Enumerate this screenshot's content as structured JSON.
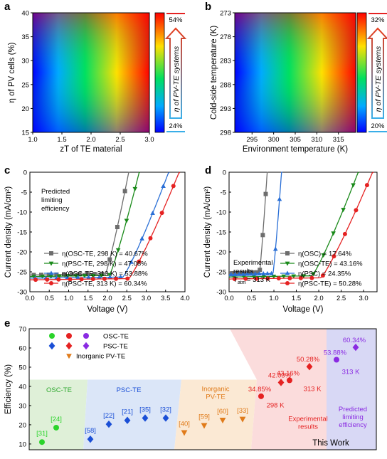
{
  "chart_data": [
    {
      "panel": "a",
      "type": "heatmap",
      "xlabel": "zT of TE material",
      "ylabel": "η of PV cells (%)",
      "xlim": [
        1.0,
        3.0
      ],
      "ylim": [
        15,
        40
      ],
      "xticks": [
        "1.0",
        "1.5",
        "2.0",
        "2.5",
        "3.0"
      ],
      "yticks": [
        "15",
        "20",
        "25",
        "30",
        "35",
        "40"
      ],
      "colorbar_label": "η of PV-TE systems",
      "colorbar_max": "54%",
      "colorbar_min": "24%",
      "corner_values": {
        "low_low": 24,
        "high_high": 54
      }
    },
    {
      "panel": "b",
      "type": "heatmap",
      "xlabel": "Environment temperature (K)",
      "ylabel": "Cold-side temperature (K)",
      "xlim": [
        291,
        319
      ],
      "ylim": [
        298,
        273
      ],
      "xticks": [
        "295",
        "300",
        "305",
        "310",
        "315"
      ],
      "yticks": [
        "273",
        "278",
        "283",
        "288",
        "293",
        "298"
      ],
      "colorbar_label": "η of PV-TE systems",
      "colorbar_max": "32%",
      "colorbar_min": "20%",
      "corner_values": {
        "low_low": 20,
        "high_high": 32
      }
    },
    {
      "panel": "c",
      "type": "line",
      "xlabel": "Voltage (V)",
      "ylabel": "Current density (mA/cm²)",
      "xlim": [
        0,
        4.0
      ],
      "ylim": [
        -30,
        0
      ],
      "xticks": [
        "0.0",
        "0.5",
        "1.0",
        "1.5",
        "2.0",
        "2.5",
        "3.0",
        "3.5",
        "4.0"
      ],
      "yticks": [
        "0",
        "-5",
        "-10",
        "-15",
        "-20",
        "-25",
        "-30"
      ],
      "annotation": [
        "Predicted",
        "limiting",
        "efficiency"
      ],
      "series": [
        {
          "name": "η(OSC-TE, 298 K) = 40.67%",
          "color": "#6d6d6d",
          "marker": "square",
          "jsc": -25.8,
          "voc": 2.55,
          "knee": 1.95,
          "curv": 0.12
        },
        {
          "name": "η(PSC-TE, 298 K) = 47.06%",
          "color": "#1a8a1a",
          "marker": "tri-down",
          "jsc": -26.2,
          "voc": 2.82,
          "knee": 2.05,
          "curv": 0.12
        },
        {
          "name": "η(OSC-TE, 313 K) = 53.88%",
          "color": "#2a6fd6",
          "marker": "tri-up",
          "jsc": -26.6,
          "voc": 3.58,
          "knee": 2.4,
          "curv": 0.14
        },
        {
          "name": "η(PSC-TE, 313 K) = 60.34%",
          "color": "#e52222",
          "marker": "circle",
          "jsc": -27.0,
          "voc": 3.85,
          "knee": 2.55,
          "curv": 0.14
        }
      ]
    },
    {
      "panel": "d",
      "type": "line",
      "xlabel": "Voltage (V)",
      "ylabel": "Current density (mA/cm²)",
      "xlim": [
        0,
        3.3
      ],
      "ylim": [
        -30,
        0
      ],
      "xticks": [
        "0.0",
        "0.5",
        "1.0",
        "1.5",
        "2.0",
        "2.5",
        "3.0"
      ],
      "yticks": [
        "0",
        "-5",
        "-10",
        "-15",
        "-20",
        "-25",
        "-30"
      ],
      "annotation": [
        "Experimental",
        "results"
      ],
      "annotation_temp": "T",
      "annotation_temp_sub": "atm",
      "annotation_temp_value": " = 313 K",
      "series": [
        {
          "name": "η(OSC) = 17.64%",
          "color": "#6d6d6d",
          "marker": "square",
          "jsc": -25.4,
          "voc": 0.85,
          "knee": 0.68,
          "curv": 0.035
        },
        {
          "name": "η(OSC-TE) = 43.16%",
          "color": "#1a8a1a",
          "marker": "tri-down",
          "jsc": -26.3,
          "voc": 2.88,
          "knee": 1.85,
          "curv": 0.16
        },
        {
          "name": "η(PSC) = 24.35%",
          "color": "#2a6fd6",
          "marker": "tri-up",
          "jsc": -25.7,
          "voc": 1.17,
          "knee": 0.98,
          "curv": 0.035
        },
        {
          "name": "η(PSC-TE) = 50.28%",
          "color": "#e52222",
          "marker": "circle",
          "jsc": -26.8,
          "voc": 3.2,
          "knee": 2.05,
          "curv": 0.17
        }
      ]
    },
    {
      "panel": "e",
      "type": "scatter",
      "ylabel": "Efficiency (%)",
      "ylim": [
        7,
        70
      ],
      "yticks": [
        "10",
        "20",
        "30",
        "40",
        "50",
        "60",
        "70"
      ],
      "legend": [
        {
          "label": "OSC-TE",
          "markers": [
            {
              "shape": "circle",
              "color": "#2bd42b"
            },
            {
              "shape": "circle",
              "color": "#e52222"
            },
            {
              "shape": "circle",
              "color": "#8a2be2"
            }
          ]
        },
        {
          "label": "PSC-TE",
          "markers": [
            {
              "shape": "diamond",
              "color": "#1a4fd6"
            },
            {
              "shape": "diamond",
              "color": "#e52222"
            },
            {
              "shape": "diamond",
              "color": "#8a2be2"
            }
          ]
        },
        {
          "label": "Inorganic PV-TE",
          "markers": [
            {
              "shape": "tri-down",
              "color": "#e07b1a"
            }
          ]
        }
      ],
      "regions": [
        {
          "label": "OSC-TE",
          "color": "#2fa82f"
        },
        {
          "label": "PSC-TE",
          "color": "#1a4fd6"
        },
        {
          "label": "Inorganic",
          "label2": "PV-TE",
          "color": "#e07b1a"
        },
        {
          "label": "Experimental",
          "label2": "results",
          "color": "#e52222"
        },
        {
          "label": "Predicted",
          "label2": "limiting",
          "label3": "efficiency",
          "color": "#8a2be2"
        }
      ],
      "points": [
        {
          "label": "[31]",
          "value": 11.0,
          "shape": "circle",
          "color": "#2bd42b"
        },
        {
          "label": "[24]",
          "value": 18.5,
          "shape": "circle",
          "color": "#2bd42b"
        },
        {
          "label": "[58]",
          "value": 12.5,
          "shape": "diamond",
          "color": "#1a4fd6"
        },
        {
          "label": "[22]",
          "value": 20.3,
          "shape": "diamond",
          "color": "#1a4fd6"
        },
        {
          "label": "[21]",
          "value": 22.3,
          "shape": "diamond",
          "color": "#1a4fd6"
        },
        {
          "label": "[35]",
          "value": 23.5,
          "shape": "diamond",
          "color": "#1a4fd6"
        },
        {
          "label": "[32]",
          "value": 23.5,
          "shape": "diamond",
          "color": "#1a4fd6"
        },
        {
          "label": "[40]",
          "value": 16.0,
          "shape": "tri-down",
          "color": "#e07b1a"
        },
        {
          "label": "[59]",
          "value": 19.7,
          "shape": "tri-down",
          "color": "#e07b1a"
        },
        {
          "label": "[60]",
          "value": 22.5,
          "shape": "tri-down",
          "color": "#e07b1a"
        },
        {
          "label": "[33]",
          "value": 23.0,
          "shape": "tri-down",
          "color": "#e07b1a"
        },
        {
          "label": "34.85%",
          "value": 34.85,
          "shape": "circle",
          "color": "#e52222"
        },
        {
          "label": "42.03%",
          "value": 42.03,
          "shape": "diamond",
          "color": "#e52222"
        },
        {
          "label": "43.16%",
          "value": 43.16,
          "shape": "circle",
          "color": "#e52222"
        },
        {
          "label": "50.28%",
          "value": 50.28,
          "shape": "diamond",
          "color": "#e52222"
        },
        {
          "label": "53.88%",
          "value": 53.88,
          "shape": "circle",
          "color": "#8a2be2"
        },
        {
          "label": "60.34%",
          "value": 60.34,
          "shape": "diamond",
          "color": "#8a2be2"
        }
      ],
      "temp_labels": [
        "298 K",
        "313 K",
        "313 K"
      ],
      "footer": "This Work"
    }
  ],
  "panel_letters": [
    "a",
    "b",
    "c",
    "d",
    "e"
  ]
}
